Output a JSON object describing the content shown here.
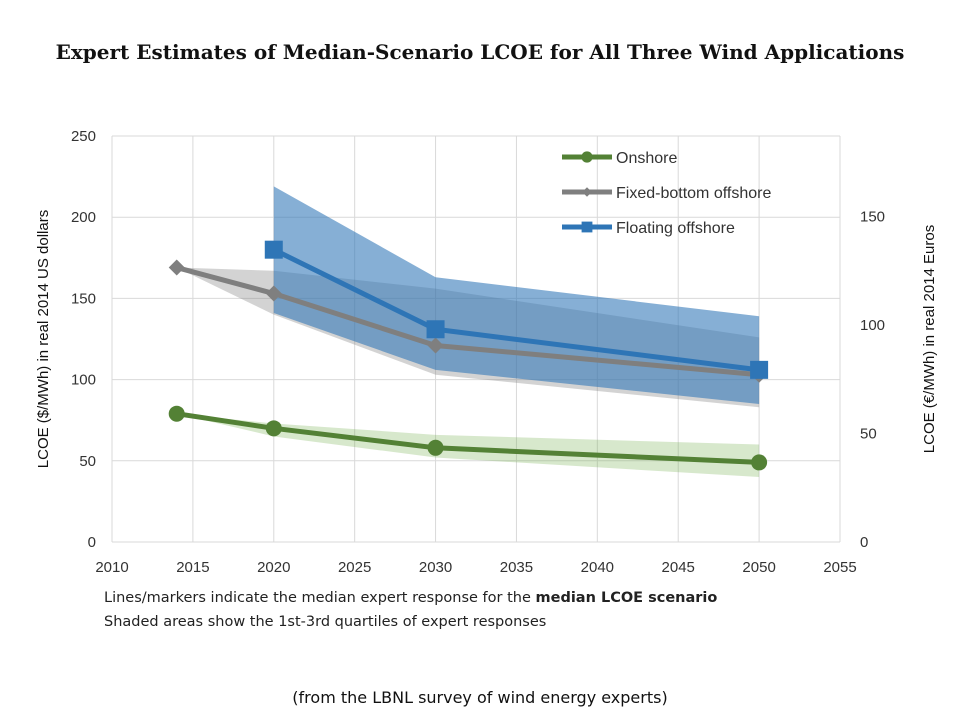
{
  "chart_data": {
    "type": "line",
    "title": "Expert Estimates of Median-Scenario LCOE for All Three Wind Applications",
    "xlabel": "",
    "ylabel": "LCOE ($/MWh) in real 2014 US dollars",
    "y2label": "LCOE (€/MWh) in real 2014 Euros",
    "xlim": [
      2010,
      2055
    ],
    "ylim": [
      0,
      250
    ],
    "y2lim": [
      0,
      187
    ],
    "xticks": [
      "2010",
      "2015",
      "2020",
      "2025",
      "2030",
      "2035",
      "2040",
      "2045",
      "2050",
      "2055"
    ],
    "yticks": [
      "0",
      "50",
      "100",
      "150",
      "200",
      "250"
    ],
    "y2ticks": [
      "0",
      "50",
      "100",
      "150"
    ],
    "grid": true,
    "legend_placement": "top-right",
    "series": [
      {
        "name": "Onshore",
        "color": "#538135",
        "marker": "circle",
        "x": [
          2014,
          2020,
          2030,
          2050
        ],
        "values": [
          79,
          70,
          58,
          49
        ],
        "q1": [
          79,
          65,
          52,
          40
        ],
        "q3": [
          79,
          73,
          66,
          60
        ]
      },
      {
        "name": "Fixed-bottom offshore",
        "color": "#7f7f7f",
        "marker": "diamond",
        "x": [
          2014,
          2020,
          2030,
          2050
        ],
        "values": [
          169,
          153,
          121,
          103
        ],
        "q1": [
          169,
          140,
          103,
          83
        ],
        "q3": [
          169,
          167,
          156,
          126
        ]
      },
      {
        "name": "Floating offshore",
        "color": "#2e75b6",
        "marker": "square",
        "x": [
          2020,
          2030,
          2050
        ],
        "values": [
          180,
          131,
          106
        ],
        "q1": [
          141,
          106,
          85
        ],
        "q3": [
          219,
          163,
          139
        ]
      }
    ]
  },
  "notes": {
    "line1_prefix": "Lines/markers indicate the median expert response for the ",
    "line1_bold": "median LCOE scenario",
    "line2": "Shaded areas show the 1st-3rd quartiles of expert responses"
  },
  "source": "(from the LBNL survey of wind energy experts)"
}
